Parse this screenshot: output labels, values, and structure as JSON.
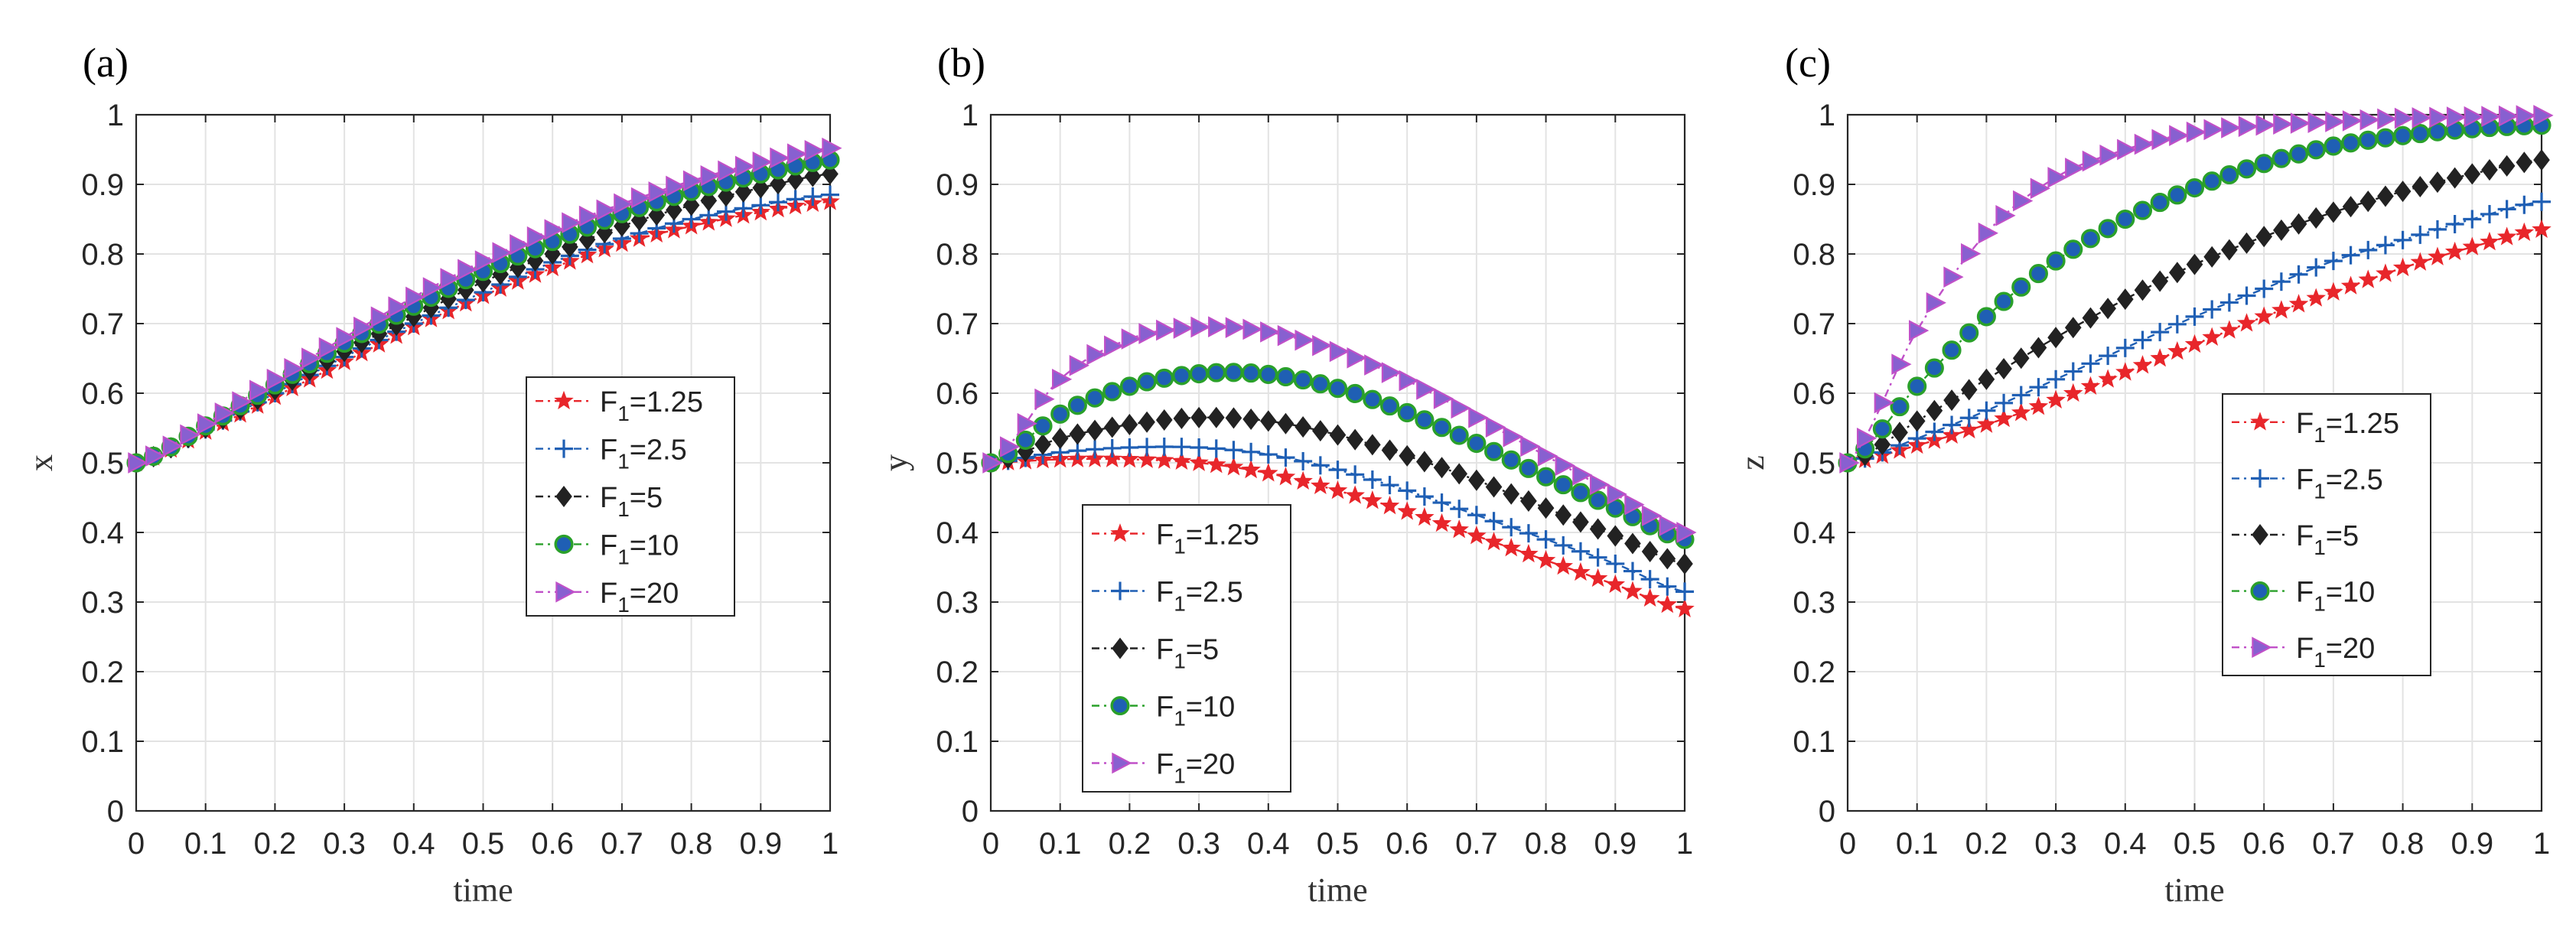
{
  "colors": {
    "F1_1.25": "#e8262b",
    "F1_2.5": "#1f5fb4",
    "F1_5": "#222222",
    "F1_10": "#2aa02a",
    "F1_20": "#c050c8"
  },
  "chart_data": [
    {
      "panel_label": "(a)",
      "type": "line",
      "xlabel": "time",
      "ylabel": "x",
      "xlim": [
        0,
        1
      ],
      "ylim": [
        0,
        1
      ],
      "xticks": [
        "0",
        "0.1",
        "0.2",
        "0.3",
        "0.4",
        "0.5",
        "0.6",
        "0.7",
        "0.8",
        "0.9",
        "1"
      ],
      "yticks": [
        "0",
        "0.1",
        "0.2",
        "0.3",
        "0.4",
        "0.5",
        "0.6",
        "0.7",
        "0.8",
        "0.9",
        "1"
      ],
      "grid": true,
      "legend_position": "center-right",
      "x": [
        0,
        0.1,
        0.2,
        0.3,
        0.4,
        0.5,
        0.6,
        0.7,
        0.8,
        0.9,
        1.0
      ],
      "series": [
        {
          "name": "F1=1.25",
          "legend_main": "F",
          "legend_sub": "1",
          "legend_value": "=1.25",
          "marker": "star",
          "color": "#e8262b",
          "values": [
            0.5,
            0.545,
            0.595,
            0.645,
            0.695,
            0.74,
            0.78,
            0.815,
            0.84,
            0.86,
            0.875
          ]
        },
        {
          "name": "F1=2.5",
          "legend_main": "F",
          "legend_sub": "1",
          "legend_value": "=2.5",
          "marker": "plus",
          "color": "#1f5fb4",
          "values": [
            0.5,
            0.548,
            0.6,
            0.652,
            0.7,
            0.745,
            0.788,
            0.822,
            0.85,
            0.87,
            0.885
          ]
        },
        {
          "name": "F1=5",
          "legend_main": "F",
          "legend_sub": "1",
          "legend_value": "=5",
          "marker": "diamond",
          "color": "#222222",
          "values": [
            0.5,
            0.55,
            0.605,
            0.66,
            0.71,
            0.76,
            0.8,
            0.84,
            0.87,
            0.895,
            0.915
          ]
        },
        {
          "name": "F1=10",
          "legend_main": "F",
          "legend_sub": "1",
          "legend_value": "=10",
          "marker": "circle",
          "color": "#2aa02a",
          "values": [
            0.5,
            0.553,
            0.612,
            0.672,
            0.725,
            0.775,
            0.818,
            0.858,
            0.89,
            0.915,
            0.935
          ]
        },
        {
          "name": "F1=20",
          "legend_main": "F",
          "legend_sub": "1",
          "legend_value": "=20",
          "marker": "triangle",
          "color": "#c050c8",
          "values": [
            0.5,
            0.556,
            0.62,
            0.68,
            0.738,
            0.79,
            0.835,
            0.872,
            0.905,
            0.932,
            0.952
          ]
        }
      ]
    },
    {
      "panel_label": "(b)",
      "type": "line",
      "xlabel": "time",
      "ylabel": "y",
      "xlim": [
        0,
        1
      ],
      "ylim": [
        0,
        1
      ],
      "xticks": [
        "0",
        "0.1",
        "0.2",
        "0.3",
        "0.4",
        "0.5",
        "0.6",
        "0.7",
        "0.8",
        "0.9",
        "1"
      ],
      "yticks": [
        "0",
        "0.1",
        "0.2",
        "0.3",
        "0.4",
        "0.5",
        "0.6",
        "0.7",
        "0.8",
        "0.9",
        "1"
      ],
      "grid": true,
      "legend_position": "bottom-left",
      "x": [
        0,
        0.1,
        0.2,
        0.3,
        0.4,
        0.5,
        0.6,
        0.7,
        0.8,
        0.9,
        1.0
      ],
      "series": [
        {
          "name": "F1=1.25",
          "legend_main": "F",
          "legend_sub": "1",
          "legend_value": "=1.25",
          "marker": "star",
          "color": "#e8262b",
          "values": [
            0.5,
            0.505,
            0.505,
            0.5,
            0.485,
            0.46,
            0.43,
            0.395,
            0.36,
            0.325,
            0.29
          ]
        },
        {
          "name": "F1=2.5",
          "legend_main": "F",
          "legend_sub": "1",
          "legend_value": "=2.5",
          "marker": "plus",
          "color": "#1f5fb4",
          "values": [
            0.5,
            0.515,
            0.522,
            0.522,
            0.512,
            0.49,
            0.46,
            0.425,
            0.39,
            0.355,
            0.315
          ]
        },
        {
          "name": "F1=5",
          "legend_main": "F",
          "legend_sub": "1",
          "legend_value": "=5",
          "marker": "diamond",
          "color": "#222222",
          "values": [
            0.5,
            0.535,
            0.555,
            0.565,
            0.56,
            0.54,
            0.51,
            0.475,
            0.435,
            0.395,
            0.355
          ]
        },
        {
          "name": "F1=10",
          "legend_main": "F",
          "legend_sub": "1",
          "legend_value": "=10",
          "marker": "circle",
          "color": "#2aa02a",
          "values": [
            0.5,
            0.57,
            0.61,
            0.628,
            0.627,
            0.607,
            0.572,
            0.528,
            0.48,
            0.435,
            0.39
          ]
        },
        {
          "name": "F1=20",
          "legend_main": "F",
          "legend_sub": "1",
          "legend_value": "=20",
          "marker": "triangle",
          "color": "#c050c8",
          "values": [
            0.5,
            0.62,
            0.678,
            0.695,
            0.688,
            0.66,
            0.618,
            0.565,
            0.51,
            0.455,
            0.4
          ]
        }
      ]
    },
    {
      "panel_label": "(c)",
      "type": "line",
      "xlabel": "time",
      "ylabel": "z",
      "xlim": [
        0,
        1
      ],
      "ylim": [
        0,
        1
      ],
      "xticks": [
        "0",
        "0.1",
        "0.2",
        "0.3",
        "0.4",
        "0.5",
        "0.6",
        "0.7",
        "0.8",
        "0.9",
        "1"
      ],
      "yticks": [
        "0",
        "0.1",
        "0.2",
        "0.3",
        "0.4",
        "0.5",
        "0.6",
        "0.7",
        "0.8",
        "0.9",
        "1"
      ],
      "grid": true,
      "legend_position": "center-right",
      "x": [
        0,
        0.1,
        0.2,
        0.3,
        0.4,
        0.5,
        0.6,
        0.7,
        0.8,
        0.9,
        1.0
      ],
      "series": [
        {
          "name": "F1=1.25",
          "legend_main": "F",
          "legend_sub": "1",
          "legend_value": "=1.25",
          "marker": "star",
          "color": "#e8262b",
          "values": [
            0.5,
            0.525,
            0.555,
            0.59,
            0.63,
            0.67,
            0.71,
            0.745,
            0.78,
            0.81,
            0.835
          ]
        },
        {
          "name": "F1=2.5",
          "legend_main": "F",
          "legend_sub": "1",
          "legend_value": "=2.5",
          "marker": "plus",
          "color": "#1f5fb4",
          "values": [
            0.5,
            0.535,
            0.575,
            0.62,
            0.665,
            0.71,
            0.75,
            0.79,
            0.82,
            0.85,
            0.875
          ]
        },
        {
          "name": "F1=5",
          "legend_main": "F",
          "legend_sub": "1",
          "legend_value": "=5",
          "marker": "diamond",
          "color": "#222222",
          "values": [
            0.5,
            0.56,
            0.62,
            0.68,
            0.735,
            0.785,
            0.825,
            0.86,
            0.89,
            0.915,
            0.935
          ]
        },
        {
          "name": "F1=10",
          "legend_main": "F",
          "legend_sub": "1",
          "legend_value": "=10",
          "marker": "circle",
          "color": "#2aa02a",
          "values": [
            0.5,
            0.61,
            0.71,
            0.79,
            0.85,
            0.895,
            0.93,
            0.955,
            0.97,
            0.98,
            0.985
          ]
        },
        {
          "name": "F1=20",
          "legend_main": "F",
          "legend_sub": "1",
          "legend_value": "=20",
          "marker": "triangle",
          "color": "#c050c8",
          "values": [
            0.5,
            0.69,
            0.83,
            0.91,
            0.95,
            0.975,
            0.985,
            0.99,
            0.995,
            0.997,
            0.999
          ]
        }
      ]
    }
  ]
}
